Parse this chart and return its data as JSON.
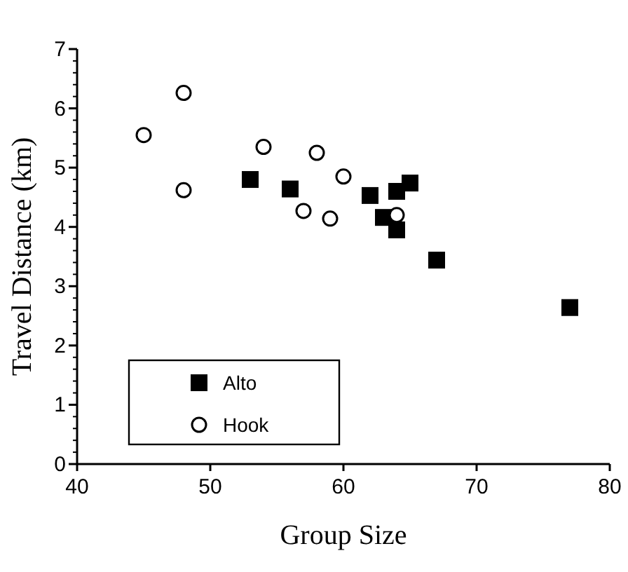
{
  "chart_data": {
    "type": "scatter",
    "xlabel": "Group Size",
    "ylabel": "Travel Distance (km)",
    "xlim": [
      40,
      80
    ],
    "xticks": [
      40,
      50,
      60,
      70,
      80
    ],
    "ylim": [
      0,
      7
    ],
    "yticks": [
      0,
      1,
      2,
      3,
      4,
      5,
      6,
      7
    ],
    "legend": "bottom left",
    "grid": false,
    "series": [
      {
        "name": "Alto",
        "color": "#000000",
        "marker": "square",
        "x": [
          53,
          56,
          62,
          64,
          65,
          63,
          64,
          67,
          77
        ],
        "values": [
          4.8,
          4.64,
          4.53,
          4.6,
          4.74,
          4.16,
          3.95,
          3.44,
          2.64
        ]
      },
      {
        "name": "Hook",
        "color": "#000000",
        "marker": "circle",
        "x": [
          45,
          48,
          48,
          54,
          58,
          60,
          57,
          59,
          64
        ],
        "values": [
          5.55,
          6.26,
          4.62,
          5.35,
          5.25,
          4.85,
          4.27,
          4.14,
          4.2
        ]
      }
    ]
  }
}
